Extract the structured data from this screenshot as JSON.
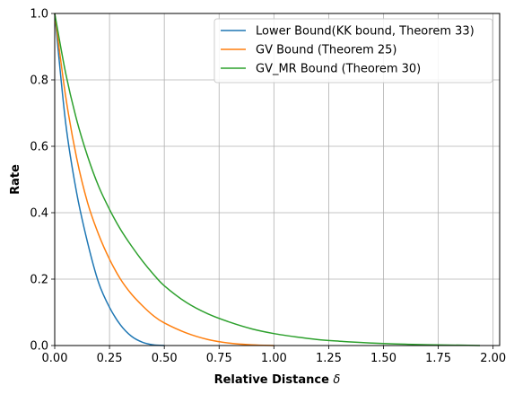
{
  "chart_data": {
    "type": "line",
    "xlabel": "Relative Distance",
    "xlabel_symbol": "δ",
    "ylabel": "Rate",
    "xlim": [
      0.0,
      2.03
    ],
    "ylim": [
      0.0,
      1.0
    ],
    "xticks": [
      "0.00",
      "0.25",
      "0.50",
      "0.75",
      "1.00",
      "1.25",
      "1.50",
      "1.75",
      "2.00"
    ],
    "xtick_values": [
      0.0,
      0.25,
      0.5,
      0.75,
      1.0,
      1.25,
      1.5,
      1.75,
      2.0
    ],
    "yticks": [
      "0.0",
      "0.2",
      "0.4",
      "0.6",
      "0.8",
      "1.0"
    ],
    "ytick_values": [
      0.0,
      0.2,
      0.4,
      0.6,
      0.8,
      1.0
    ],
    "grid": true,
    "legend_position": "top-right",
    "series": [
      {
        "name": "Lower Bound(KK bound, Theorem 33)",
        "color": "#1f77b4",
        "x": [
          0.0,
          0.05,
          0.1,
          0.15,
          0.2,
          0.25,
          0.3,
          0.35,
          0.4,
          0.45,
          0.5
        ],
        "y": [
          1.0,
          0.67,
          0.46,
          0.31,
          0.19,
          0.115,
          0.062,
          0.028,
          0.01,
          0.002,
          0.0
        ]
      },
      {
        "name": "GV Bound (Theorem 25)",
        "color": "#ff7f0e",
        "x": [
          0.0,
          0.05,
          0.1,
          0.15,
          0.2,
          0.25,
          0.3,
          0.35,
          0.4,
          0.45,
          0.5,
          0.6,
          0.7,
          0.8,
          0.9,
          1.0
        ],
        "y": [
          1.0,
          0.75,
          0.565,
          0.43,
          0.335,
          0.26,
          0.2,
          0.155,
          0.12,
          0.09,
          0.068,
          0.038,
          0.018,
          0.007,
          0.002,
          0.0
        ]
      },
      {
        "name": "GV_MR Bound (Theorem 30)",
        "color": "#2ca02c",
        "x": [
          0.0,
          0.05,
          0.1,
          0.15,
          0.2,
          0.25,
          0.3,
          0.35,
          0.4,
          0.45,
          0.5,
          0.6,
          0.7,
          0.8,
          0.9,
          1.0,
          1.1,
          1.2,
          1.3,
          1.4,
          1.5,
          1.6,
          1.7,
          1.8,
          1.94
        ],
        "y": [
          1.0,
          0.82,
          0.68,
          0.57,
          0.48,
          0.41,
          0.35,
          0.3,
          0.255,
          0.215,
          0.18,
          0.13,
          0.095,
          0.07,
          0.05,
          0.036,
          0.026,
          0.018,
          0.013,
          0.009,
          0.006,
          0.004,
          0.0025,
          0.0015,
          0.0
        ]
      }
    ]
  }
}
